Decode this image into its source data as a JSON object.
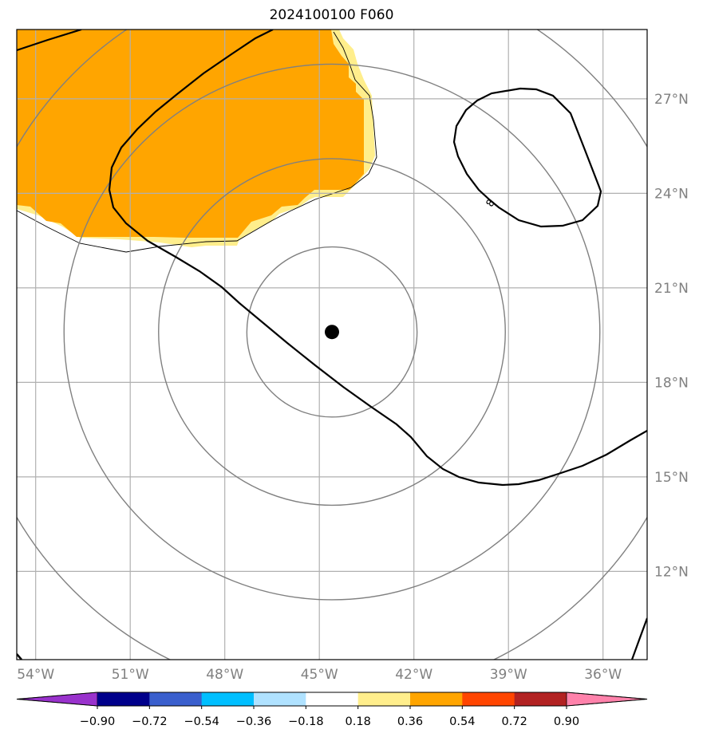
{
  "title": "2024100100 F060",
  "map": {
    "lon_range": [
      -54.6,
      -34.6
    ],
    "lat_range": [
      9.2,
      29.2
    ],
    "lon_ticks": [
      {
        "value": -54,
        "label": "54°W"
      },
      {
        "value": -51,
        "label": "51°W"
      },
      {
        "value": -48,
        "label": "48°W"
      },
      {
        "value": -45,
        "label": "45°W"
      },
      {
        "value": -42,
        "label": "42°W"
      },
      {
        "value": -39,
        "label": "39°W"
      },
      {
        "value": -36,
        "label": "36°W"
      }
    ],
    "lat_ticks": [
      {
        "value": 12,
        "label": "12°N"
      },
      {
        "value": 15,
        "label": "15°N"
      },
      {
        "value": 18,
        "label": "18°N"
      },
      {
        "value": 21,
        "label": "21°N"
      },
      {
        "value": 24,
        "label": "24°N"
      },
      {
        "value": 27,
        "label": "27°N"
      }
    ],
    "grid": true,
    "storm_center": {
      "lon": -44.6,
      "lat": 19.6
    },
    "range_rings_deg": [
      2.7,
      5.5,
      8.5,
      11.6
    ],
    "contour_label": "8",
    "field_fill_color": "#ffa500",
    "field_edge_color": "#ffee8c"
  },
  "colorbar": {
    "boundaries": [
      "−0.90",
      "−0.72",
      "−0.54",
      "−0.36",
      "−0.18",
      "0.18",
      "0.36",
      "0.54",
      "0.72",
      "0.90"
    ],
    "colors": [
      "#9932cc",
      "#00008b",
      "#3a5fcd",
      "#00bfff",
      "#b0e2ff",
      "#ffffff",
      "#ffee8c",
      "#ffa500",
      "#ff4500",
      "#b22222",
      "#ff82ab"
    ]
  }
}
